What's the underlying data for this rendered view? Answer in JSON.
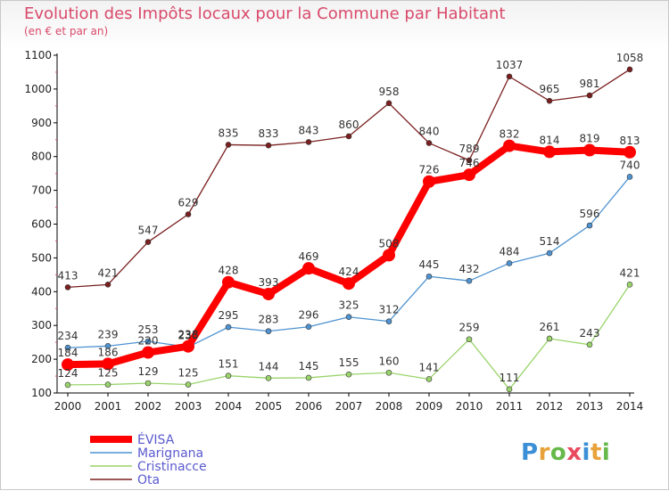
{
  "title": "Evolution des Impôts locaux pour la Commune par Habitant",
  "subtitle": "(en € et par an)",
  "logo": {
    "text": "Proxiti",
    "letters": [
      {
        "ch": "P",
        "color": "#3b8fd6"
      },
      {
        "ch": "r",
        "color": "#e8a23a"
      },
      {
        "ch": "o",
        "color": "#66b94a"
      },
      {
        "ch": "x",
        "color": "#e84a5f"
      },
      {
        "ch": "i",
        "color": "#3b8fd6"
      },
      {
        "ch": "t",
        "color": "#e8a23a"
      },
      {
        "ch": "i",
        "color": "#66b94a"
      }
    ]
  },
  "colors": {
    "title": "#d94a6b",
    "axis": "#000000",
    "grid": "#e8e8e8"
  },
  "chart_data": {
    "type": "line",
    "title": "Evolution des Impôts locaux pour la Commune par Habitant",
    "subtitle": "(en € et par an)",
    "x": [
      "2000",
      "2001",
      "2002",
      "2003",
      "2004",
      "2005",
      "2006",
      "2007",
      "2008",
      "2009",
      "2010",
      "2011",
      "2012",
      "2013",
      "2014"
    ],
    "ylim": [
      100,
      1100
    ],
    "yticks": [
      100,
      200,
      300,
      400,
      500,
      600,
      700,
      800,
      900,
      1000,
      1100
    ],
    "grid": false,
    "legend_position": "bottom-left",
    "series": [
      {
        "name": "ÉVISA",
        "color": "#ff0000",
        "values": [
          184,
          186,
          220,
          238,
          428,
          393,
          469,
          424,
          508,
          726,
          746,
          832,
          814,
          819,
          813
        ],
        "labels": [
          "184",
          "186",
          "220",
          "238",
          "428",
          "393",
          "469",
          "424",
          "508",
          "726",
          "746",
          "832",
          "814",
          "819",
          "813"
        ]
      },
      {
        "name": "Marignana",
        "color": "#4f93d1",
        "values": [
          234,
          239,
          253,
          236,
          295,
          283,
          296,
          325,
          312,
          445,
          432,
          484,
          514,
          596,
          740
        ],
        "labels": [
          "234",
          "239",
          "253",
          "236",
          "295",
          "283",
          "296",
          "325",
          "312",
          "445",
          "432",
          "484",
          "514",
          "596",
          "740"
        ]
      },
      {
        "name": "Cristinacce",
        "color": "#9ad46b",
        "values": [
          124,
          125,
          129,
          125,
          151,
          144,
          145,
          155,
          160,
          141,
          259,
          111,
          261,
          243,
          421
        ],
        "labels": [
          "124",
          "125",
          "129",
          "125",
          "151",
          "144",
          "145",
          "155",
          "160",
          "141",
          "259",
          "111",
          "261",
          "243",
          "421"
        ]
      },
      {
        "name": "Ota",
        "color": "#7a1f1f",
        "values": [
          413,
          421,
          547,
          629,
          835,
          833,
          843,
          860,
          958,
          840,
          789,
          1037,
          965,
          981,
          1058
        ],
        "labels": [
          "413",
          "421",
          "547",
          "629",
          "835",
          "833",
          "843",
          "860",
          "958",
          "840",
          "789",
          "1037",
          "965",
          "981",
          "1058"
        ]
      }
    ]
  }
}
